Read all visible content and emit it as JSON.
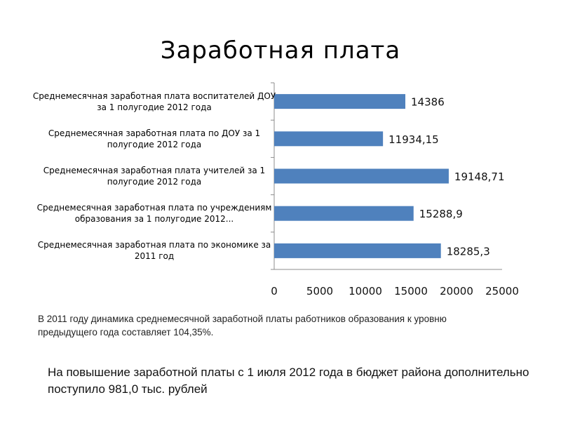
{
  "title": "Заработная плата",
  "chart_data": {
    "type": "bar",
    "orientation": "horizontal",
    "categories": [
      "Среднемесячная заработная плата воспитателей ДОУ  за 1 полугодие 2012 года",
      "Среднемесячная заработная плата по ДОУ  за 1 полугодие 2012 года",
      "Среднемесячная заработная плата учителей  за 1 полугодие 2012 года",
      "Среднемесячная заработная плата по учреждениям образования за 1 полугодие 2012...",
      "Среднемесячная заработная плата по экономике за 2011 год"
    ],
    "values": [
      14386,
      11934.15,
      19148.71,
      15288.9,
      18285.3
    ],
    "value_labels": [
      "14386",
      "11934,15",
      "19148,71",
      "15288,9",
      "18285,3"
    ],
    "xlim": [
      0,
      25000
    ],
    "xticks": [
      "0",
      "5000",
      "10000",
      "15000",
      "20000",
      "25000"
    ],
    "bar_color": "#4f81bd",
    "grid": false
  },
  "note": "В 2011 году динамика среднемесячной заработной платы работников образования к уровню предыдущего года составляет 104,35%.",
  "footer": "На повышение заработной платы с 1 июля 2012 года в бюджет района дополнительно поступило 981,0 тыс. рублей"
}
